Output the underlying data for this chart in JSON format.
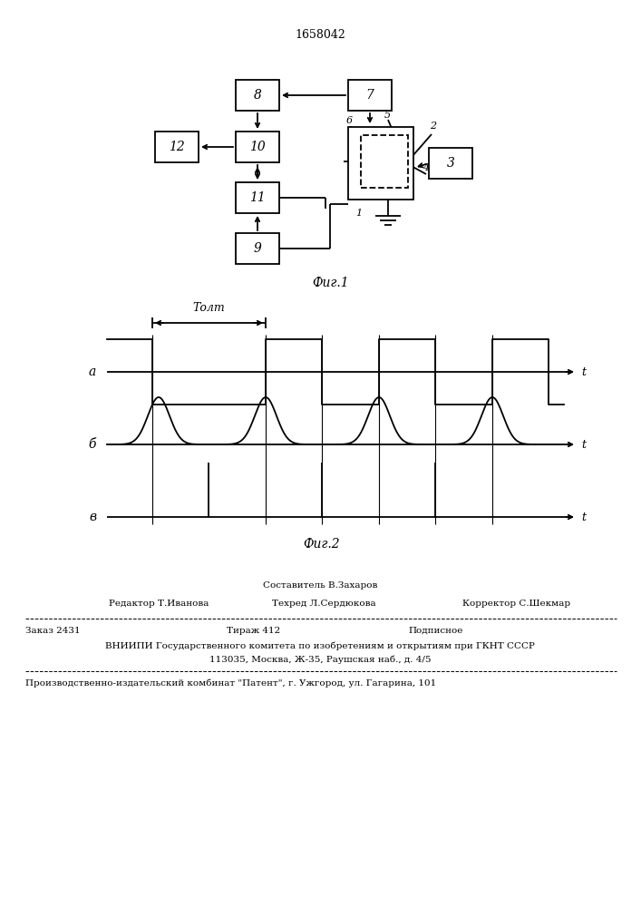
{
  "title_patent": "1658042",
  "fig1_caption": "Фиг.1",
  "fig2_caption": "Фиг.2",
  "bg_color": "#ffffff",
  "line_color": "#000000",
  "fig2_topt_label": "Tолт",
  "fig2_a_label": "a",
  "fig2_b_label": "б",
  "fig2_v_label": "в",
  "fig2_t_label": "t",
  "footer_sestavitel": "Составитель В.Захаров",
  "footer_redaktor": "Редактор Т.Иванова",
  "footer_tehred": "Техред Л.Сердюкова",
  "footer_korrektor": "Корректор С.Шекмар",
  "footer_zakaz": "Заказ 2431",
  "footer_tirazh": "Тираж 412",
  "footer_podpisnoe": "Подписное",
  "footer_vniipи": "ВНИИПИ Государственного комитета по изобретениям и открытиям при ГКНТ СССР",
  "footer_addr": "113035, Москва, Ж-35, Раушская наб., д. 4/5",
  "footer_patent": "Производственно-издательский комбинат \"Патент\", г. Ужгород, ул. Гагарина, 101"
}
